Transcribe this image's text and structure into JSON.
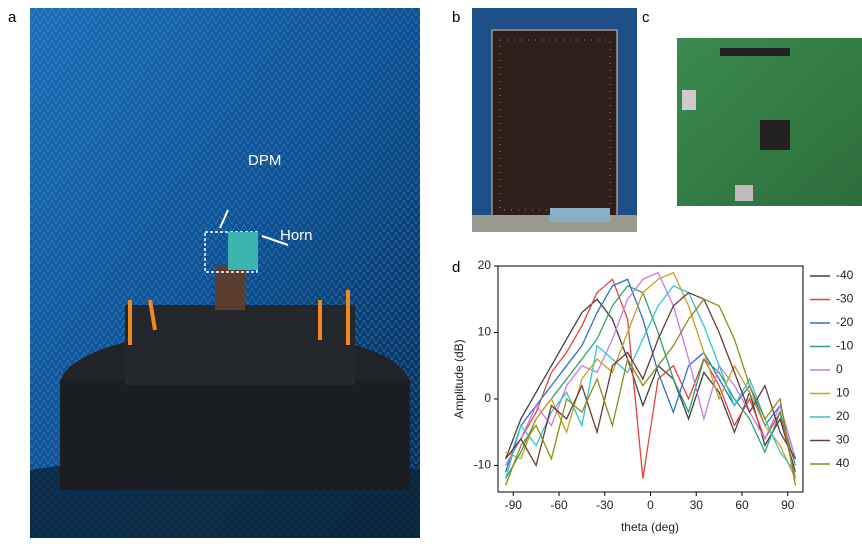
{
  "panel_labels": [
    "a",
    "b",
    "c",
    "d"
  ],
  "annotations": {
    "dpm": "DPM",
    "horn": "Horn"
  },
  "chart_data": {
    "type": "line",
    "x_label": "theta (deg)",
    "y_label": "Amplitude (dB)",
    "x": [
      -95,
      -85,
      -75,
      -65,
      -55,
      -45,
      -35,
      -25,
      -15,
      -5,
      5,
      15,
      25,
      35,
      45,
      55,
      65,
      75,
      85,
      95
    ],
    "xlim": [
      -100,
      100
    ],
    "xticks": [
      -90,
      -60,
      -30,
      0,
      30,
      60,
      90
    ],
    "ylim": [
      -14,
      20
    ],
    "yticks": [
      -10,
      0,
      10,
      20
    ],
    "series": [
      {
        "name": "-40",
        "color": "#404040",
        "values": [
          -9,
          -3,
          1,
          5,
          9,
          13,
          15,
          12,
          6,
          -1,
          5,
          3,
          -3,
          4,
          1,
          -5,
          1,
          -7,
          -3,
          -11
        ]
      },
      {
        "name": "-30",
        "color": "#e8413b",
        "values": [
          -10,
          -6,
          -2,
          4,
          7,
          11,
          16,
          18,
          12,
          -12,
          3,
          5,
          0,
          6,
          2,
          -4,
          0,
          -6,
          -2,
          -12
        ]
      },
      {
        "name": "-20",
        "color": "#2a6fd6",
        "values": [
          -11,
          -4,
          -1,
          2,
          5,
          8,
          13,
          17,
          18,
          12,
          4,
          -2,
          5,
          7,
          3,
          -1,
          2,
          -4,
          -1,
          -9
        ]
      },
      {
        "name": "-10",
        "color": "#2aa36a",
        "values": [
          -12,
          -8,
          -3,
          0,
          3,
          6,
          9,
          14,
          17,
          16,
          10,
          3,
          -2,
          6,
          4,
          0,
          -3,
          -8,
          -2,
          -10
        ]
      },
      {
        "name": "0",
        "color": "#c77be8",
        "values": [
          -10,
          -6,
          -1,
          -4,
          2,
          5,
          4,
          9,
          15,
          18,
          19,
          14,
          6,
          -3,
          5,
          2,
          -2,
          -6,
          -1,
          -9
        ]
      },
      {
        "name": "10",
        "color": "#c9a21a",
        "values": [
          -8,
          -9,
          -3,
          0,
          -5,
          3,
          6,
          4,
          10,
          16,
          18,
          19,
          14,
          7,
          0,
          5,
          1,
          -4,
          -7,
          -12
        ]
      },
      {
        "name": "20",
        "color": "#2cc7d3",
        "values": [
          -12,
          -4,
          -7,
          -2,
          1,
          -4,
          8,
          6,
          4,
          9,
          14,
          17,
          16,
          11,
          5,
          -1,
          3,
          -3,
          -8,
          -11
        ]
      },
      {
        "name": "30",
        "color": "#6b3a3a",
        "values": [
          -9,
          -6,
          -10,
          -1,
          -3,
          2,
          -5,
          5,
          7,
          3,
          9,
          14,
          16,
          15,
          10,
          4,
          -2,
          2,
          -5,
          -9
        ]
      },
      {
        "name": "40",
        "color": "#8c8c1a",
        "values": [
          -13,
          -7,
          -4,
          -9,
          0,
          -2,
          3,
          -4,
          6,
          2,
          5,
          8,
          12,
          15,
          14,
          9,
          2,
          -3,
          0,
          -13
        ]
      }
    ]
  }
}
